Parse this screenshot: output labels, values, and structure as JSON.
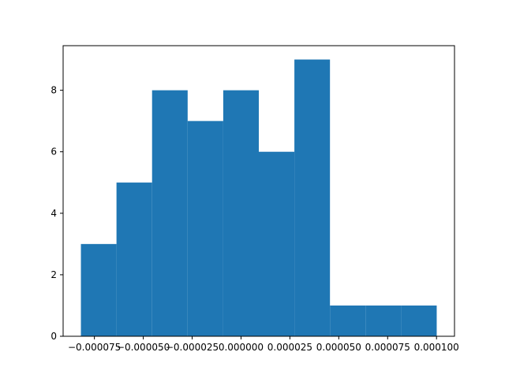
{
  "chart_data": {
    "type": "bar",
    "title": "",
    "xlabel": "",
    "ylabel": "",
    "bar_color": "#1f77b4",
    "bins": [
      {
        "x0": -8.19e-05,
        "x1": -6.37e-05,
        "count": 3
      },
      {
        "x0": -6.37e-05,
        "x1": -4.55e-05,
        "count": 5
      },
      {
        "x0": -4.55e-05,
        "x1": -2.73e-05,
        "count": 8
      },
      {
        "x0": -2.73e-05,
        "x1": -9.1e-06,
        "count": 7
      },
      {
        "x0": -9.1e-06,
        "x1": 9.1e-06,
        "count": 8
      },
      {
        "x0": 9.1e-06,
        "x1": 2.73e-05,
        "count": 6
      },
      {
        "x0": 2.73e-05,
        "x1": 4.55e-05,
        "count": 9
      },
      {
        "x0": 4.55e-05,
        "x1": 6.37e-05,
        "count": 1
      },
      {
        "x0": 6.37e-05,
        "x1": 8.19e-05,
        "count": 1
      },
      {
        "x0": 8.19e-05,
        "x1": 0.0001001,
        "count": 1
      }
    ],
    "xlim": [
      -9.1e-05,
      0.0001092
    ],
    "ylim": [
      0,
      9.45
    ],
    "xticks": [
      -7.5e-05,
      -5e-05,
      -2.5e-05,
      0.0,
      2.5e-05,
      5e-05,
      7.5e-05,
      0.0001
    ],
    "xtick_labels": [
      "−0.000075",
      "−0.000050",
      "−0.000025",
      "0.000000",
      "0.000025",
      "0.000050",
      "0.000075",
      "0.000100"
    ],
    "yticks": [
      0,
      2,
      4,
      6,
      8
    ],
    "ytick_labels": [
      "0",
      "2",
      "4",
      "6",
      "8"
    ],
    "grid": false,
    "legend": "none"
  }
}
